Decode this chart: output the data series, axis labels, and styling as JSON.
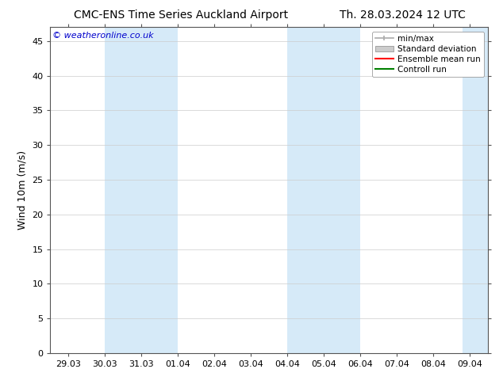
{
  "title_left": "CMC-ENS Time Series Auckland Airport",
  "title_right": "Th. 28.03.2024 12 UTC",
  "ylabel": "Wind 10m (m/s)",
  "watermark": "© weatheronline.co.uk",
  "ylim": [
    0,
    47
  ],
  "yticks": [
    0,
    5,
    10,
    15,
    20,
    25,
    30,
    35,
    40,
    45
  ],
  "x_labels": [
    "29.03",
    "30.03",
    "31.03",
    "01.04",
    "02.04",
    "03.04",
    "04.04",
    "05.04",
    "06.04",
    "07.04",
    "08.04",
    "09.04"
  ],
  "x_values": [
    0,
    1,
    2,
    3,
    4,
    5,
    6,
    7,
    8,
    9,
    10,
    11
  ],
  "xlim": [
    -0.5,
    11.5
  ],
  "shaded_bands": [
    {
      "x_start": 1.0,
      "x_end": 3.0,
      "color": "#d6eaf8"
    },
    {
      "x_start": 6.0,
      "x_end": 8.0,
      "color": "#d6eaf8"
    },
    {
      "x_start": 10.8,
      "x_end": 11.5,
      "color": "#d6eaf8"
    }
  ],
  "legend_items": [
    {
      "label": "min/max",
      "color": "#aaaaaa",
      "style": "minmax"
    },
    {
      "label": "Standard deviation",
      "color": "#cccccc",
      "style": "std"
    },
    {
      "label": "Ensemble mean run",
      "color": "red",
      "style": "line"
    },
    {
      "label": "Controll run",
      "color": "green",
      "style": "line"
    }
  ],
  "background_color": "#ffffff",
  "plot_bg_color": "#ffffff",
  "title_fontsize": 10,
  "tick_label_fontsize": 8,
  "ylabel_fontsize": 9,
  "watermark_color": "#0000cc",
  "watermark_fontsize": 8,
  "grid_color": "#cccccc",
  "spine_color": "#555555"
}
